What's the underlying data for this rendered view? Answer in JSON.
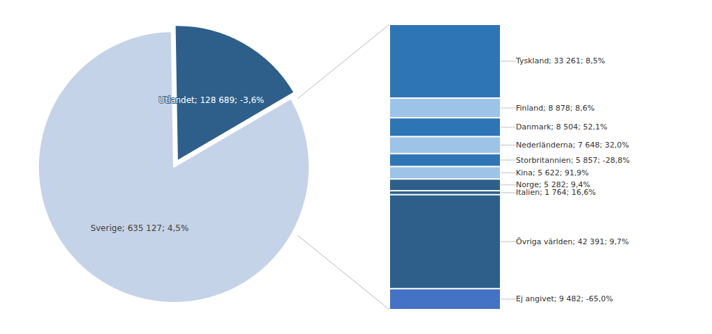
{
  "chart_data": [
    {
      "type": "pie",
      "categories": [
        "Sverige; 635 127; 4,5%",
        "Utlandet; 128 689; -3,6%"
      ],
      "values": [
        635127,
        128689
      ],
      "colors": [
        "#c5d3e8",
        "#2e5f8a"
      ]
    },
    {
      "type": "bar",
      "stacked": true,
      "categories": [
        null
      ],
      "ylim": [
        0,
        128689
      ],
      "tick_labels": false,
      "grid": false,
      "series": [
        {
          "name": "Tyskland; 33 261; 8,5%",
          "color": "#2e75b6",
          "values": [
            33261
          ]
        },
        {
          "name": "Finland; 8 878; 8,6%",
          "color": "#9dc3e6",
          "values": [
            8878
          ]
        },
        {
          "name": "Danmark; 8 504; 52,1%",
          "color": "#2e75b6",
          "values": [
            8504
          ]
        },
        {
          "name": "Nederländerna; 7 648; 32,0%",
          "color": "#9dc3e6",
          "values": [
            7648
          ]
        },
        {
          "name": "Storbritannien; 5 857; -28,8%",
          "color": "#2e75b6",
          "values": [
            5857
          ]
        },
        {
          "name": "Kina; 5 622; 91,9%",
          "color": "#9dc3e6",
          "values": [
            5622
          ]
        },
        {
          "name": "Norge; 5 282; 9,4%",
          "color": "#2e5f8a",
          "values": [
            5282
          ]
        },
        {
          "name": "Italien; 1 764; 16,6%",
          "color": "#2e5f8a",
          "values": [
            1764
          ]
        },
        {
          "name": "Övriga världen; 42 391; 9,7%",
          "color": "#2e5f8a",
          "values": [
            42391
          ]
        },
        {
          "name": "Ej angivet; 9 482; -65,0%",
          "color": "#4472c4",
          "values": [
            9482
          ]
        }
      ]
    }
  ]
}
